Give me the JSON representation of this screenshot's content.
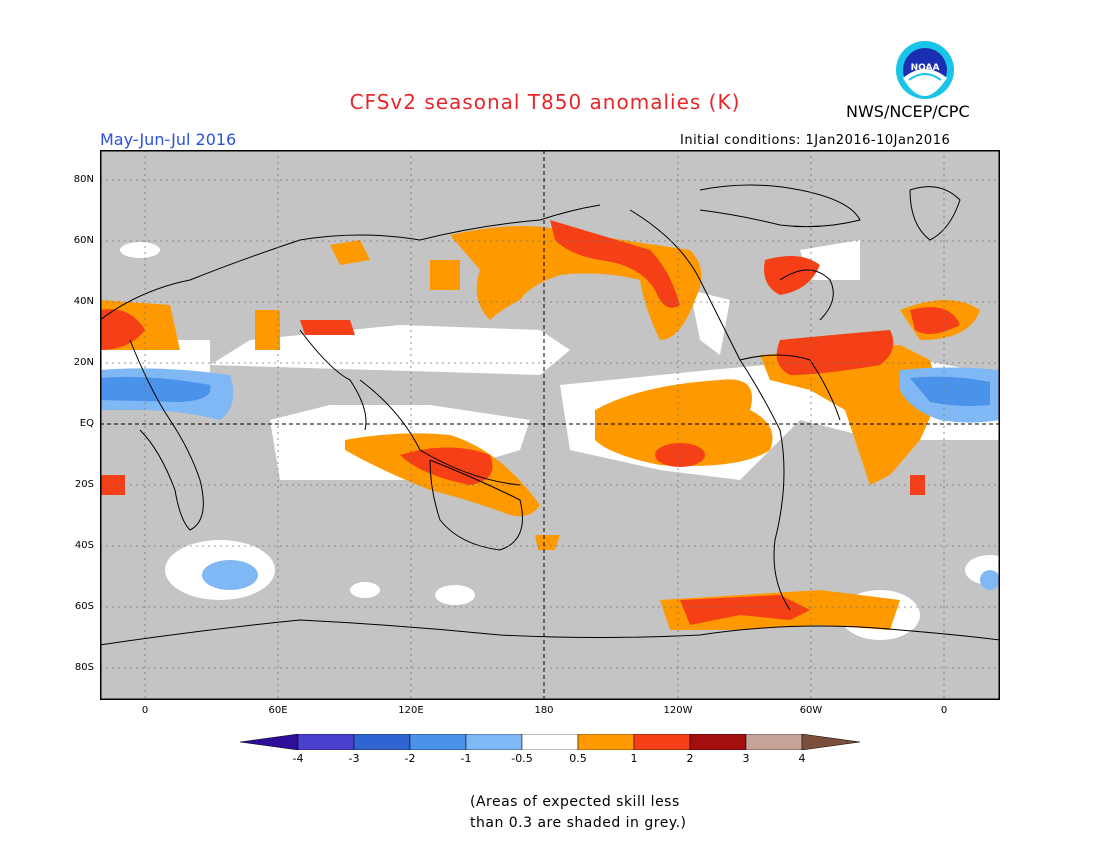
{
  "header": {
    "title": "CFSv2 seasonal T850 anomalies (K)",
    "agency": "NWS/NCEP/CPC",
    "logo_text": "NOAA",
    "season": "May-Jun-Jul 2016",
    "initial_conditions": "Initial conditions: 1Jan2016-10Jan2016"
  },
  "map": {
    "projection": "cylindrical equidistant",
    "lat_ticks": [
      "80N",
      "60N",
      "40N",
      "20N",
      "EQ",
      "20S",
      "40S",
      "60S",
      "80S"
    ],
    "lon_ticks": [
      "0",
      "60E",
      "120E",
      "180",
      "120W",
      "60W",
      "0"
    ],
    "skill_mask_color": "#c4c4c4"
  },
  "colorbar": {
    "labels": [
      "-4",
      "-3",
      "-2",
      "-1",
      "-0.5",
      "0.5",
      "1",
      "2",
      "3",
      "4"
    ],
    "colors": [
      "#2e0f99",
      "#4a41cf",
      "#2f64d2",
      "#4b92ea",
      "#7fb8f4",
      "#ffffff",
      "#ff9900",
      "#f53f16",
      "#a30e0e",
      "#c8a39a",
      "#7a4f3c"
    ]
  },
  "note": {
    "line1": "(Areas of expected skill less",
    "line2": "than 0.3 are shaded in grey.)"
  }
}
